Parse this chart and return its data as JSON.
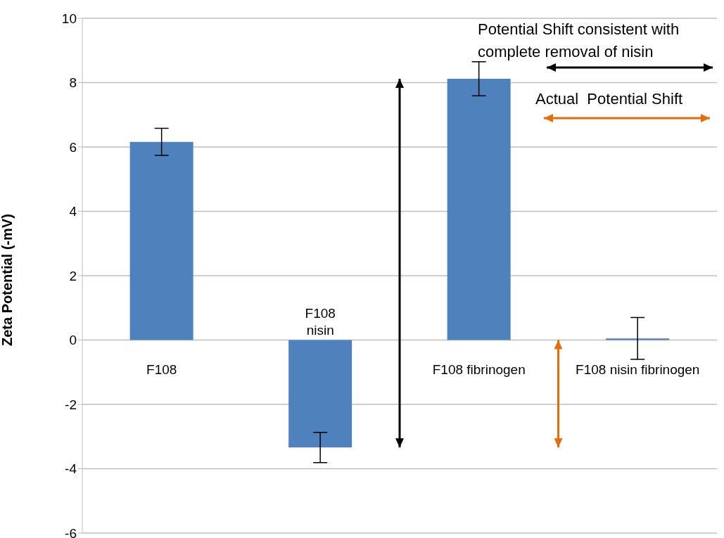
{
  "chart_data": {
    "type": "bar",
    "ylabel": "Zeta Potential (-mV)",
    "categories": [
      "F108",
      "F108 nisin",
      "F108 fibrinogen",
      "F108 nisin fibrinogen"
    ],
    "values": [
      6.16,
      -3.34,
      8.12,
      0.05
    ],
    "errors": [
      0.42,
      0.47,
      0.53,
      0.65
    ],
    "color": "#4f81bd",
    "ylim": [
      -6,
      10
    ],
    "yticks": [
      -6,
      -4,
      -2,
      0,
      2,
      4,
      6,
      8,
      10
    ],
    "grid": "y",
    "annotations": [
      "Potential Shift consistent with complete removal of nisin",
      "Actual  Potential Shift"
    ]
  }
}
